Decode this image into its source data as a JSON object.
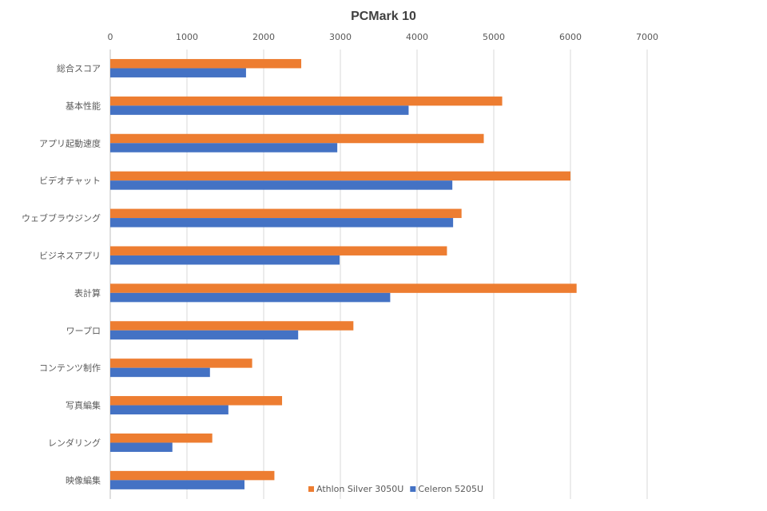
{
  "chart_data": {
    "type": "bar",
    "orientation": "horizontal",
    "title": "PCMark 10",
    "xlabel": "",
    "ylabel": "",
    "xlim": [
      0,
      7000
    ],
    "x_ticks": [
      0,
      1000,
      2000,
      3000,
      4000,
      5000,
      6000,
      7000
    ],
    "x_axis_position": "top",
    "grid": true,
    "legend_position": "bottom-right",
    "categories": [
      "総合スコア",
      "基本性能",
      "アプリ起動速度",
      "ビデオチャット",
      "ウェブブラウジング",
      "ビジネスアプリ",
      "表計算",
      "ワープロ",
      "コンテンツ制作",
      "写真編集",
      "レンダリング",
      "映像編集"
    ],
    "series": [
      {
        "name": "Athlon Silver 3050U",
        "color": "#ED7D31",
        "values": [
          2490,
          5110,
          4870,
          6000,
          4580,
          4390,
          6080,
          3170,
          1850,
          2240,
          1330,
          2140
        ]
      },
      {
        "name": "Celeron 5205U",
        "color": "#4472C4",
        "values": [
          1770,
          3890,
          2960,
          4460,
          4470,
          2990,
          3650,
          2450,
          1300,
          1540,
          810,
          1750
        ]
      }
    ]
  }
}
